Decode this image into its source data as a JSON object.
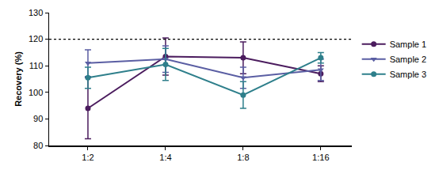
{
  "chart_data": {
    "type": "line",
    "y_label": "Recovery (%)",
    "categories": [
      "1:2",
      "1:4",
      "1:8",
      "1:16"
    ],
    "series": [
      {
        "name": "Sample 1",
        "color": "#4b1c5e",
        "marker": "circle",
        "line_style": "solid",
        "values": [
          94,
          113.5,
          113,
          107
        ],
        "error": [
          11.5,
          7,
          6,
          3
        ]
      },
      {
        "name": "Sample 2",
        "color": "#5a5ea3",
        "marker": "triangle-down",
        "line_style": "solid",
        "values": [
          111,
          112.5,
          105.5,
          108.5
        ],
        "error": [
          5,
          5,
          4,
          4
        ]
      },
      {
        "name": "Sample 3",
        "color": "#2e7f8b",
        "marker": "circle",
        "line_style": "solid",
        "values": [
          105.5,
          110.5,
          99,
          113
        ],
        "error": [
          4,
          6,
          5,
          2
        ]
      }
    ],
    "ylim": [
      80,
      130
    ],
    "yticks": [
      80,
      90,
      100,
      110,
      120,
      130
    ],
    "reference_line": 120,
    "grid": false,
    "legend": "right"
  }
}
